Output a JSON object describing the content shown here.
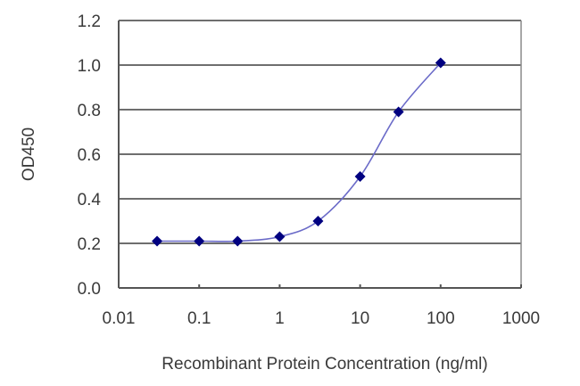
{
  "chart_data": {
    "type": "line",
    "title": "",
    "xlabel": "Recombinant Protein Concentration (ng/ml)",
    "ylabel": "OD450",
    "xscale": "log",
    "xlim": [
      0.01,
      1000
    ],
    "ylim": [
      0.0,
      1.2
    ],
    "x_ticks": [
      "0.01",
      "0.1",
      "1",
      "10",
      "100",
      "1000"
    ],
    "y_ticks": [
      "0.0",
      "0.2",
      "0.4",
      "0.6",
      "0.8",
      "1.0",
      "1.2"
    ],
    "grid": {
      "horizontal": true,
      "vertical": false
    },
    "legend": null,
    "series": [
      {
        "name": "OD450",
        "color": "#000080",
        "line_color": "#6b6bc8",
        "marker": "diamond",
        "x": [
          0.03,
          0.1,
          0.3,
          1,
          3,
          10,
          30,
          100
        ],
        "values": [
          0.21,
          0.21,
          0.21,
          0.23,
          0.3,
          0.5,
          0.79,
          1.01
        ]
      }
    ]
  }
}
